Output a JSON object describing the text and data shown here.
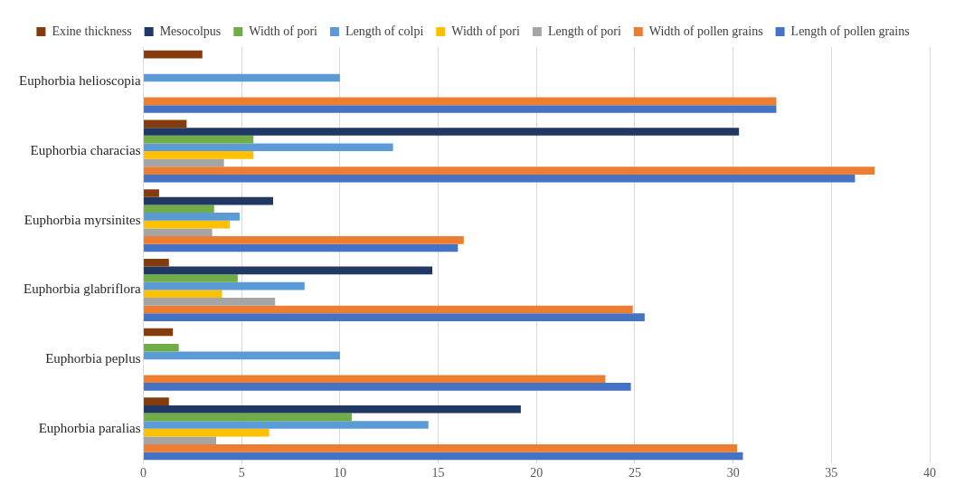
{
  "chart_data": {
    "type": "bar",
    "orientation": "horizontal",
    "categories": [
      "Euphorbia helioscopia",
      "Euphorbia characias",
      "Euphorbia myrsinites",
      "Euphorbia glabriflora",
      "Euphorbia peplus",
      "Euphorbia paralias"
    ],
    "series": [
      {
        "name": "Exine thickness",
        "color": "#843c0c",
        "values": [
          3,
          2.2,
          0.8,
          1.3,
          1.5,
          1.3
        ]
      },
      {
        "name": "Mesocolpus",
        "color": "#1f3864",
        "values": [
          null,
          30.3,
          6.6,
          14.7,
          null,
          19.2
        ]
      },
      {
        "name": "Width of pori",
        "color": "#70ad47",
        "values": [
          null,
          5.6,
          3.6,
          4.8,
          1.8,
          10.6
        ]
      },
      {
        "name": "Length of colpi",
        "color": "#5b9bd5",
        "values": [
          10,
          12.7,
          4.9,
          8.2,
          10,
          14.5
        ]
      },
      {
        "name": "Width of pori",
        "color": "#ffc000",
        "values": [
          null,
          5.6,
          4.4,
          4,
          null,
          6.4
        ]
      },
      {
        "name": "Length of pori",
        "color": "#a5a5a5",
        "values": [
          null,
          4.1,
          3.5,
          6.7,
          null,
          3.7
        ]
      },
      {
        "name": "Width of pollen grains",
        "color": "#ed7d31",
        "values": [
          32.2,
          37.2,
          16.3,
          24.9,
          23.5,
          30.2
        ]
      },
      {
        "name": "Length of pollen grains",
        "color": "#4472c4",
        "values": [
          32.2,
          36.2,
          16,
          25.5,
          24.8,
          30.5
        ]
      }
    ],
    "xlim": [
      0,
      40
    ],
    "xticks": [
      0,
      5,
      10,
      15,
      20,
      25,
      30,
      35,
      40
    ],
    "grid": "x",
    "legend": "top"
  }
}
